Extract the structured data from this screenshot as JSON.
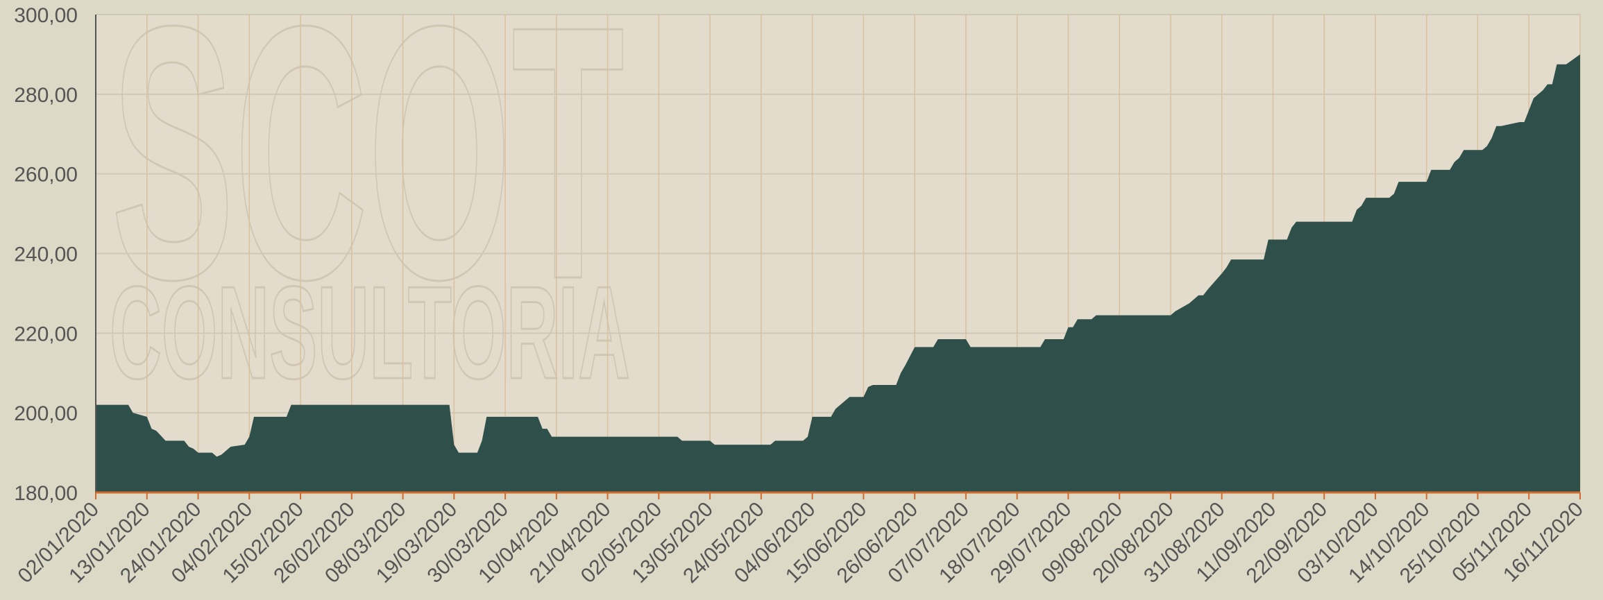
{
  "chart_data": {
    "type": "area",
    "watermark": [
      "SCOT",
      "CONSULTORIA"
    ],
    "color": "#2f4f4a",
    "grid": true,
    "xlim": [
      "02/01/2020",
      "16/11/2020"
    ],
    "xticks": [
      "02/01/2020",
      "13/01/2020",
      "24/01/2020",
      "04/02/2020",
      "15/02/2020",
      "26/02/2020",
      "08/03/2020",
      "19/03/2020",
      "30/03/2020",
      "10/04/2020",
      "21/04/2020",
      "02/05/2020",
      "13/05/2020",
      "24/05/2020",
      "04/06/2020",
      "15/06/2020",
      "26/06/2020",
      "07/07/2020",
      "18/07/2020",
      "29/07/2020",
      "09/08/2020",
      "20/08/2020",
      "31/08/2020",
      "11/09/2020",
      "22/09/2020",
      "03/10/2020",
      "14/10/2020",
      "25/10/2020",
      "05/11/2020",
      "16/11/2020"
    ],
    "ylim": [
      180,
      300
    ],
    "yticks": [
      {
        "value": 180,
        "label": "180,00"
      },
      {
        "value": 200,
        "label": "200,00"
      },
      {
        "value": 220,
        "label": "220,00"
      },
      {
        "value": 240,
        "label": "240,00"
      },
      {
        "value": 260,
        "label": "260,00"
      },
      {
        "value": 280,
        "label": "280,00"
      },
      {
        "value": 300,
        "label": "300,00"
      }
    ],
    "x": [
      "02/01/2020",
      "09/01/2020",
      "10/01/2020",
      "13/01/2020",
      "14/01/2020",
      "15/01/2020",
      "17/01/2020",
      "21/01/2020",
      "22/01/2020",
      "23/01/2020",
      "24/01/2020",
      "27/01/2020",
      "28/01/2020",
      "29/01/2020",
      "31/01/2020",
      "03/02/2020",
      "04/02/2020",
      "05/02/2020",
      "12/02/2020",
      "13/02/2020",
      "18/03/2020",
      "19/03/2020",
      "20/03/2020",
      "24/03/2020",
      "25/03/2020",
      "26/03/2020",
      "06/04/2020",
      "07/04/2020",
      "08/04/2020",
      "09/04/2020",
      "06/05/2020",
      "07/05/2020",
      "13/05/2020",
      "14/05/2020",
      "26/05/2020",
      "27/05/2020",
      "02/06/2020",
      "03/06/2020",
      "04/06/2020",
      "08/06/2020",
      "09/06/2020",
      "12/06/2020",
      "15/06/2020",
      "16/06/2020",
      "17/06/2020",
      "22/06/2020",
      "23/06/2020",
      "24/06/2020",
      "26/06/2020",
      "30/06/2020",
      "01/07/2020",
      "07/07/2020",
      "08/07/2020",
      "23/07/2020",
      "24/07/2020",
      "28/07/2020",
      "29/07/2020",
      "30/07/2020",
      "31/07/2020",
      "03/08/2020",
      "04/08/2020",
      "20/08/2020",
      "21/08/2020",
      "24/08/2020",
      "26/08/2020",
      "27/08/2020",
      "28/08/2020",
      "31/08/2020",
      "01/09/2020",
      "02/09/2020",
      "09/09/2020",
      "10/09/2020",
      "14/09/2020",
      "15/09/2020",
      "16/09/2020",
      "28/09/2020",
      "29/09/2020",
      "30/09/2020",
      "01/10/2020",
      "06/10/2020",
      "07/10/2020",
      "08/10/2020",
      "14/10/2020",
      "15/10/2020",
      "19/10/2020",
      "20/10/2020",
      "21/10/2020",
      "22/10/2020",
      "26/10/2020",
      "27/10/2020",
      "28/10/2020",
      "29/10/2020",
      "30/10/2020",
      "03/11/2020",
      "04/11/2020",
      "06/11/2020",
      "08/11/2020",
      "09/11/2020",
      "10/11/2020",
      "11/11/2020",
      "13/11/2020",
      "16/11/2020"
    ],
    "values": [
      202,
      202,
      200,
      199,
      196,
      195.5,
      193,
      193,
      191.5,
      191,
      190,
      190,
      189,
      189.5,
      191.5,
      192,
      194,
      199,
      199,
      202,
      202,
      192,
      190,
      190,
      193,
      199,
      199,
      196,
      196,
      194,
      194,
      193,
      193,
      192,
      192,
      193,
      193,
      194,
      199,
      199,
      201,
      204,
      204,
      206.5,
      207,
      207,
      210,
      212,
      216.5,
      216.5,
      218.5,
      218.5,
      216.5,
      216.5,
      218.5,
      218.5,
      221.5,
      221.5,
      223.5,
      223.5,
      224.5,
      224.5,
      225.5,
      227.5,
      229.5,
      229.5,
      231,
      235,
      236.5,
      238.5,
      238.5,
      243.5,
      243.5,
      246.5,
      248,
      248,
      251,
      252,
      254,
      254,
      255,
      258,
      258,
      261,
      261,
      263,
      264,
      266,
      266,
      267,
      269,
      272,
      272,
      273,
      273,
      279,
      281,
      282.5,
      282.5,
      287.5,
      287.5,
      290
    ]
  }
}
